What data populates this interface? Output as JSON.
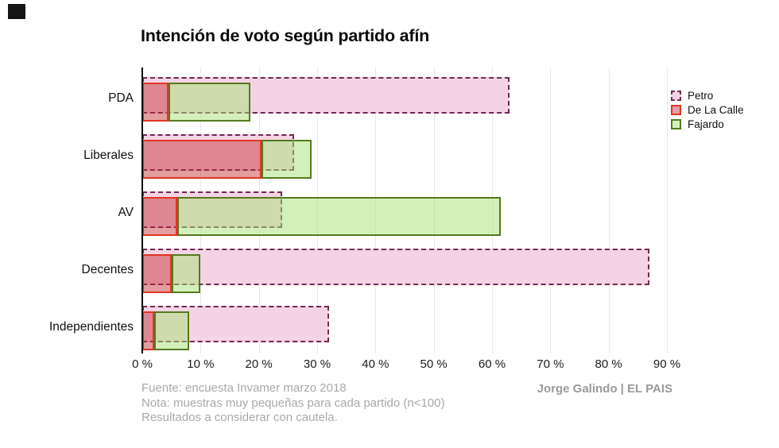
{
  "title": "Intención de voto según partido afín",
  "chart_data": {
    "type": "bar",
    "orientation": "horizontal",
    "title": "Intención de voto según partido afín",
    "categories": [
      "PDA",
      "Liberales",
      "AV",
      "Decentes",
      "Independientes"
    ],
    "series": [
      {
        "name": "Petro",
        "style": "dashed outline bar drawn from zero",
        "values": [
          63,
          26,
          24,
          87,
          32
        ]
      },
      {
        "name": "De La Calle",
        "style": "solid bar from zero",
        "values": [
          4.5,
          20.5,
          6,
          5,
          2
        ]
      },
      {
        "name": "Fajardo",
        "style": "segment stacked after De La Calle",
        "values": [
          14,
          8.5,
          55.5,
          5,
          6
        ]
      }
    ],
    "x_ticks": [
      "0 %",
      "10 %",
      "20 %",
      "30 %",
      "40 %",
      "50 %",
      "60 %",
      "70 %",
      "80 %",
      "90 %"
    ],
    "x_tick_values": [
      0,
      10,
      20,
      30,
      40,
      50,
      60,
      70,
      80,
      90
    ],
    "xlim": [
      0,
      90
    ],
    "grid": "vertical light gray",
    "legend_position": "right"
  },
  "legend": {
    "items": [
      {
        "label": "Petro",
        "fill": "#F4D4E4",
        "border": "#6E2A52",
        "border_style": "dashed"
      },
      {
        "label": "De La Calle",
        "fill": "rgba(195,40,45,0.45)",
        "border": "#E23425",
        "border_style": "solid"
      },
      {
        "label": "Fajardo",
        "fill": "rgba(167,225,117,0.5)",
        "border": "#55791E",
        "border_style": "solid"
      }
    ]
  },
  "footer": {
    "lines": [
      "Fuente: encuesta Invamer marzo 2018",
      "Nota: muestras muy pequeñas para cada partido (n<100)",
      "Resultados a considerar con cautela."
    ],
    "credit": "Jorge Galindo | EL PAIS"
  },
  "colors": {
    "petro_fill": "#F4D4E4",
    "petro_border": "#6E2A52",
    "de_la_calle_fill": "rgba(195,40,45,0.45)",
    "de_la_calle_border": "#E23425",
    "fajardo_fill": "rgba(167,225,117,0.5)",
    "fajardo_border": "#55791E",
    "gridline": "#E9E9E9",
    "axis": "#000000",
    "footer_text": "#A9A9A9",
    "credit_text": "#9A9A9A"
  }
}
